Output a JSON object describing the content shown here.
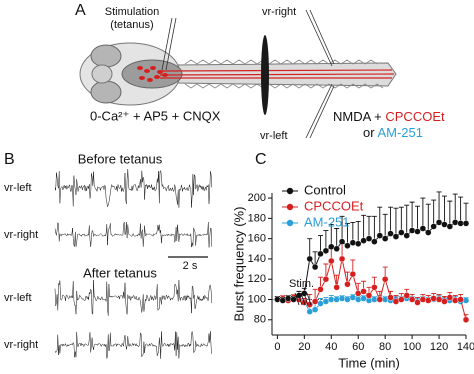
{
  "panel_labels": [
    "A",
    "B",
    "C"
  ],
  "diagram": {
    "stimulation": [
      "Stimulation",
      "(tetanus)"
    ],
    "vr_right": "vr-right",
    "vr_left": "vr-left",
    "bath": "0-Ca²⁺ + AP5 + CNQX",
    "drug_prefix": "NMDA + ",
    "drug_1": "CPCCOEt",
    "drug_or": "or",
    "drug_2": "AM-251"
  },
  "traces": {
    "before": "Before tetanus",
    "after": "After tetanus",
    "vr_left": "vr-left",
    "vr_right": "vr-right",
    "scale": "2 s"
  },
  "chart_data": {
    "type": "line",
    "xlabel": "Time (min)",
    "ylabel": "Burst frequency (%)",
    "annotation": "Stim.",
    "x": [
      0,
      4,
      8,
      12,
      16,
      20,
      24,
      28,
      32,
      36,
      40,
      44,
      48,
      52,
      56,
      60,
      64,
      68,
      72,
      76,
      80,
      84,
      88,
      92,
      96,
      100,
      104,
      108,
      112,
      116,
      120,
      124,
      128,
      132,
      136,
      140
    ],
    "xlim": [
      -4,
      140
    ],
    "xticks": [
      0,
      20,
      40,
      60,
      80,
      100,
      120,
      140
    ],
    "ylim": [
      65,
      205
    ],
    "yticks": [
      80,
      100,
      120,
      140,
      160,
      180,
      200
    ],
    "reference_line": 100,
    "legend": "upper left",
    "series": [
      {
        "name": "Control",
        "color": "#111111",
        "values": [
          100,
          99,
          101,
          100,
          104,
          106,
          140,
          132,
          145,
          148,
          152,
          150,
          157,
          153,
          156,
          155,
          158,
          160,
          157,
          163,
          160,
          165,
          162,
          166,
          163,
          168,
          167,
          170,
          166,
          172,
          176,
          174,
          172,
          176,
          175,
          175
        ],
        "errors": [
          3,
          3,
          3,
          3,
          4,
          5,
          20,
          15,
          18,
          20,
          22,
          20,
          25,
          22,
          20,
          22,
          25,
          22,
          25,
          28,
          24,
          26,
          28,
          25,
          30,
          28,
          25,
          30,
          28,
          26,
          30,
          28,
          25,
          28,
          26,
          20
        ]
      },
      {
        "name": "CPCCOEt",
        "color": "#d62020",
        "values": [
          100,
          101,
          99,
          102,
          100,
          97,
          95,
          98,
          110,
          120,
          138,
          112,
          140,
          115,
          125,
          106,
          108,
          104,
          112,
          100,
          120,
          102,
          98,
          100,
          104,
          100,
          97,
          100,
          99,
          101,
          100,
          98,
          102,
          99,
          100,
          80
        ],
        "errors": [
          3,
          3,
          3,
          3,
          3,
          4,
          10,
          12,
          12,
          15,
          15,
          12,
          18,
          12,
          14,
          10,
          10,
          8,
          10,
          8,
          12,
          6,
          6,
          6,
          6,
          5,
          5,
          5,
          5,
          5,
          5,
          5,
          5,
          5,
          5,
          5
        ]
      },
      {
        "name": "AM-251",
        "color": "#2a9fd8",
        "values": [
          100,
          100,
          99,
          101,
          100,
          98,
          88,
          90,
          96,
          98,
          100,
          100,
          101,
          100,
          102,
          100,
          101,
          99,
          100,
          101,
          100,
          99,
          100,
          100,
          101,
          100,
          98,
          100,
          99,
          100,
          101,
          100,
          99,
          100,
          98,
          99
        ],
        "errors": [
          3,
          2,
          2,
          2,
          2,
          3,
          8,
          7,
          5,
          4,
          4,
          3,
          3,
          3,
          3,
          3,
          3,
          3,
          3,
          3,
          3,
          3,
          3,
          3,
          3,
          3,
          3,
          3,
          3,
          3,
          3,
          3,
          3,
          3,
          3,
          3
        ]
      }
    ]
  }
}
